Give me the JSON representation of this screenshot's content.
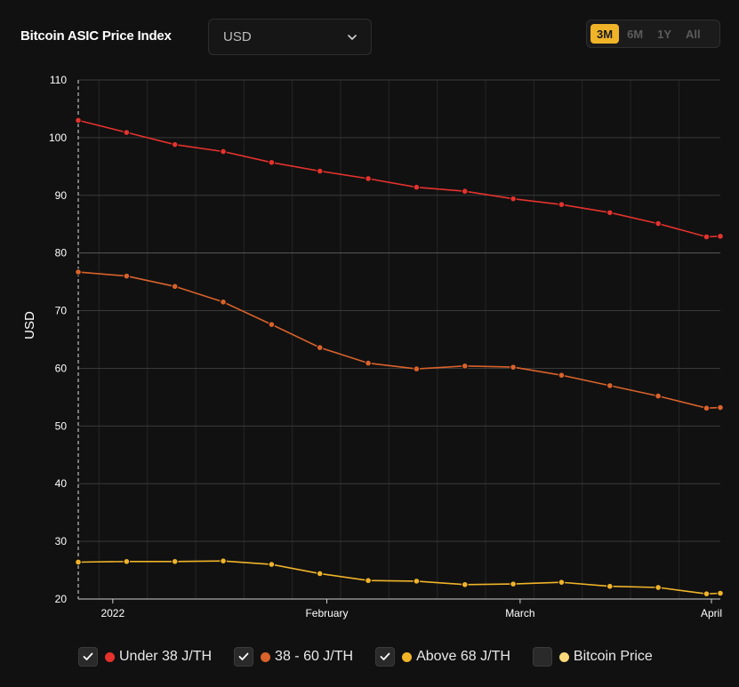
{
  "header": {
    "title": "Bitcoin ASIC Price Index",
    "currency_select": {
      "value": "USD"
    },
    "range_buttons": [
      {
        "label": "3M",
        "active": true
      },
      {
        "label": "6M",
        "active": false
      },
      {
        "label": "1Y",
        "active": false
      },
      {
        "label": "All",
        "active": false
      }
    ]
  },
  "legend": [
    {
      "label": "Under 38 J/TH",
      "color": "#e5322d",
      "checked": true
    },
    {
      "label": "38 - 60 J/TH",
      "color": "#d9622b",
      "checked": true
    },
    {
      "label": "Above 68 J/TH",
      "color": "#f0b429",
      "checked": true
    },
    {
      "label": "Bitcoin Price",
      "color": "#f9d97a",
      "checked": false
    }
  ],
  "chart_data": {
    "type": "line",
    "ylabel": "USD",
    "xlabel": "",
    "ylim": [
      20,
      110
    ],
    "yticks": [
      20,
      30,
      40,
      50,
      60,
      70,
      80,
      90,
      100,
      110
    ],
    "x": [
      "2021-12-27",
      "2022-01-03",
      "2022-01-10",
      "2022-01-17",
      "2022-01-24",
      "2022-01-31",
      "2022-02-07",
      "2022-02-14",
      "2022-02-21",
      "2022-02-28",
      "2022-03-07",
      "2022-03-14",
      "2022-03-21",
      "2022-03-28",
      "2022-03-30"
    ],
    "xticks": [
      {
        "label": "2022",
        "date": "2022-01-01"
      },
      {
        "label": "February",
        "date": "2022-02-01"
      },
      {
        "label": "March",
        "date": "2022-03-01"
      },
      {
        "label": "April",
        "date": "2022-04-01"
      }
    ],
    "series": [
      {
        "name": "Under 38 J/TH",
        "color": "#e5322d",
        "values": [
          103.0,
          100.9,
          98.8,
          97.6,
          95.7,
          94.2,
          92.9,
          91.4,
          90.7,
          89.4,
          88.4,
          87.0,
          85.1,
          82.8,
          82.9
        ]
      },
      {
        "name": "38 - 60 J/TH",
        "color": "#d9622b",
        "values": [
          76.7,
          76.0,
          74.2,
          71.5,
          67.6,
          63.6,
          60.9,
          59.9,
          60.4,
          60.2,
          58.8,
          57.0,
          55.2,
          53.1,
          53.2
        ]
      },
      {
        "name": "Above 68 J/TH",
        "color": "#f0b429",
        "values": [
          26.4,
          26.5,
          26.5,
          26.6,
          26.0,
          24.4,
          23.2,
          23.1,
          22.5,
          22.6,
          22.9,
          22.2,
          22.0,
          20.9,
          21.0
        ]
      }
    ],
    "grid": true
  }
}
